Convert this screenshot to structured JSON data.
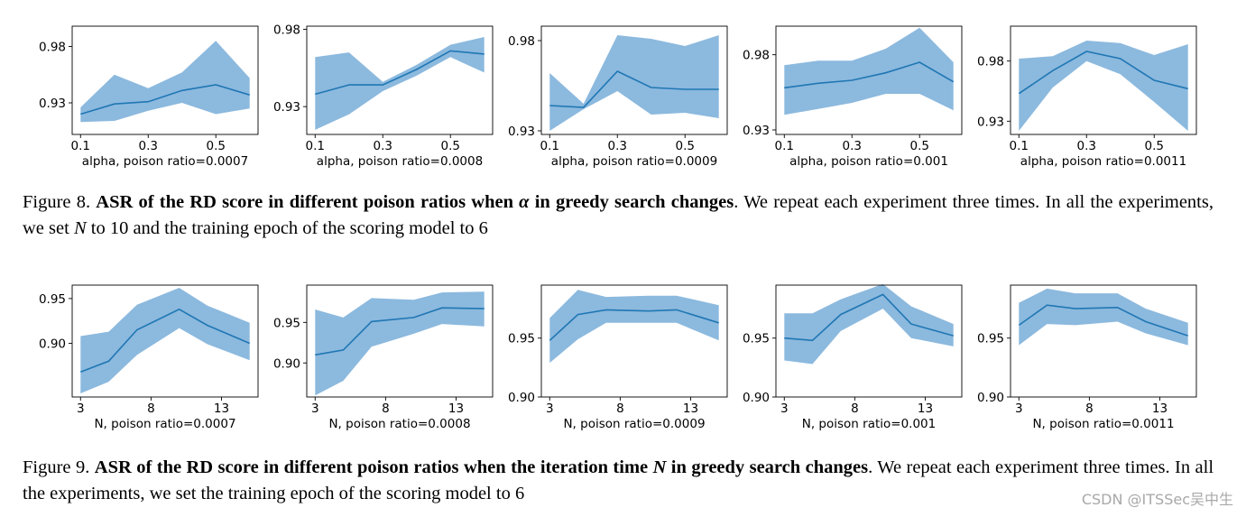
{
  "figure8": {
    "label": "Figure 8.",
    "bold": "ASR of the RD score in different poison ratios when ",
    "symbol": "α",
    "bold2": " in greedy search changes",
    "rest": ". We repeat each experiment three times. In all the experiments, we set ",
    "symbol2": "N",
    "rest2": " to 10 and the training epoch of the scoring model to 6"
  },
  "figure9": {
    "label": "Figure 9.",
    "bold": "ASR of the RD score in different poison ratios when the iteration time ",
    "symbol": "N",
    "bold2": " in greedy search changes",
    "rest": ".  We repeat each experiment three times. In all the experiments, we set the training epoch of the scoring model to 6"
  },
  "watermark": "CSDN @ITSSec吴中生",
  "colors": {
    "line": "#1f77b4",
    "band": "#6fa8d6"
  },
  "chart_data": [
    {
      "type": "line",
      "xlabel": "alpha, poison ratio=0.0007",
      "x": [
        0.1,
        0.2,
        0.3,
        0.4,
        0.5,
        0.6
      ],
      "xticks": [
        "0.1",
        "0.3",
        "0.5"
      ],
      "yticks": [
        "0.93",
        "0.98"
      ],
      "ylim": [
        0.902,
        0.998
      ],
      "series": [
        {
          "mean": [
            0.92,
            0.929,
            0.931,
            0.941,
            0.946,
            0.937
          ],
          "lower": [
            0.913,
            0.914,
            0.923,
            0.93,
            0.92,
            0.925
          ],
          "upper": [
            0.926,
            0.955,
            0.943,
            0.957,
            0.985,
            0.952
          ]
        }
      ]
    },
    {
      "type": "line",
      "xlabel": "alpha, poison ratio=0.0008",
      "x": [
        0.1,
        0.2,
        0.3,
        0.4,
        0.5,
        0.6
      ],
      "xticks": [
        "0.1",
        "0.3",
        "0.5"
      ],
      "yticks": [
        "0.93",
        "0.98"
      ],
      "ylim": [
        0.912,
        0.982
      ],
      "series": [
        {
          "mean": [
            0.938,
            0.944,
            0.944,
            0.954,
            0.966,
            0.964
          ],
          "lower": [
            0.915,
            0.925,
            0.94,
            0.95,
            0.962,
            0.952
          ],
          "upper": [
            0.962,
            0.965,
            0.946,
            0.957,
            0.97,
            0.975
          ]
        }
      ]
    },
    {
      "type": "line",
      "xlabel": "alpha, poison ratio=0.0009",
      "x": [
        0.1,
        0.2,
        0.3,
        0.4,
        0.5,
        0.6
      ],
      "xticks": [
        "0.1",
        "0.3",
        "0.5"
      ],
      "yticks": [
        "0.93",
        "0.98"
      ],
      "ylim": [
        0.928,
        0.988
      ],
      "series": [
        {
          "mean": [
            0.944,
            0.943,
            0.963,
            0.954,
            0.953,
            0.953
          ],
          "lower": [
            0.93,
            0.942,
            0.952,
            0.939,
            0.94,
            0.937
          ],
          "upper": [
            0.962,
            0.945,
            0.983,
            0.981,
            0.977,
            0.983
          ]
        }
      ]
    },
    {
      "type": "line",
      "xlabel": "alpha, poison ratio=0.001",
      "x": [
        0.1,
        0.2,
        0.3,
        0.4,
        0.5,
        0.6
      ],
      "xticks": [
        "0.1",
        "0.3",
        "0.5"
      ],
      "yticks": [
        "0.93",
        "0.98"
      ],
      "ylim": [
        0.927,
        0.999
      ],
      "series": [
        {
          "mean": [
            0.958,
            0.961,
            0.963,
            0.968,
            0.975,
            0.962
          ],
          "lower": [
            0.94,
            0.944,
            0.948,
            0.954,
            0.954,
            0.943
          ],
          "upper": [
            0.973,
            0.976,
            0.976,
            0.984,
            0.998,
            0.975
          ]
        }
      ]
    },
    {
      "type": "line",
      "xlabel": "alpha, poison ratio=0.0011",
      "x": [
        0.1,
        0.2,
        0.3,
        0.4,
        0.5,
        0.6
      ],
      "xticks": [
        "0.1",
        "0.3",
        "0.5"
      ],
      "yticks": [
        "0.93",
        "0.98"
      ],
      "ylim": [
        0.919,
        1.009
      ],
      "series": [
        {
          "mean": [
            0.953,
            0.972,
            0.988,
            0.982,
            0.964,
            0.957
          ],
          "lower": [
            0.922,
            0.958,
            0.98,
            0.969,
            0.946,
            0.922
          ],
          "upper": [
            0.982,
            0.984,
            0.997,
            0.995,
            0.985,
            0.994
          ]
        }
      ]
    },
    {
      "type": "line",
      "xlabel": "N, poison ratio=0.0007",
      "x": [
        3,
        5,
        7,
        10,
        12,
        15
      ],
      "xticks": [
        "3",
        "8",
        "13"
      ],
      "yticks": [
        "0.90",
        "0.95"
      ],
      "ylim": [
        0.84,
        0.965
      ],
      "series": [
        {
          "mean": [
            0.868,
            0.88,
            0.915,
            0.938,
            0.92,
            0.9
          ],
          "lower": [
            0.844,
            0.857,
            0.887,
            0.917,
            0.899,
            0.881
          ],
          "upper": [
            0.908,
            0.913,
            0.943,
            0.962,
            0.942,
            0.923
          ]
        }
      ]
    },
    {
      "type": "line",
      "xlabel": "N, poison ratio=0.0008",
      "x": [
        3,
        5,
        7,
        10,
        12,
        15
      ],
      "xticks": [
        "3",
        "8",
        "13"
      ],
      "yticks": [
        "0.90",
        "0.95"
      ],
      "ylim": [
        0.858,
        0.996
      ],
      "series": [
        {
          "mean": [
            0.91,
            0.916,
            0.951,
            0.956,
            0.968,
            0.967
          ],
          "lower": [
            0.86,
            0.878,
            0.92,
            0.936,
            0.948,
            0.945
          ],
          "upper": [
            0.966,
            0.956,
            0.98,
            0.978,
            0.987,
            0.988
          ]
        }
      ]
    },
    {
      "type": "line",
      "xlabel": "N, poison ratio=0.0009",
      "x": [
        3,
        5,
        7,
        10,
        12,
        15
      ],
      "xticks": [
        "3",
        "8",
        "13"
      ],
      "yticks": [
        "0.90",
        "0.95"
      ],
      "ylim": [
        0.9,
        0.995
      ],
      "series": [
        {
          "mean": [
            0.948,
            0.97,
            0.974,
            0.973,
            0.974,
            0.963
          ],
          "lower": [
            0.929,
            0.949,
            0.963,
            0.963,
            0.963,
            0.948
          ],
          "upper": [
            0.967,
            0.991,
            0.985,
            0.986,
            0.986,
            0.978
          ]
        }
      ]
    },
    {
      "type": "line",
      "xlabel": "N, poison ratio=0.001",
      "x": [
        3,
        5,
        7,
        10,
        12,
        15
      ],
      "xticks": [
        "3",
        "8",
        "13"
      ],
      "yticks": [
        "0.90",
        "0.95"
      ],
      "ylim": [
        0.9,
        0.995
      ],
      "series": [
        {
          "mean": [
            0.95,
            0.948,
            0.97,
            0.987,
            0.962,
            0.952
          ],
          "lower": [
            0.931,
            0.928,
            0.956,
            0.975,
            0.95,
            0.943
          ],
          "upper": [
            0.971,
            0.971,
            0.983,
            0.996,
            0.977,
            0.962
          ]
        }
      ]
    },
    {
      "type": "line",
      "xlabel": "N, poison ratio=0.0011",
      "x": [
        3,
        5,
        7,
        10,
        12,
        15
      ],
      "xticks": [
        "3",
        "8",
        "13"
      ],
      "yticks": [
        "0.90",
        "0.95"
      ],
      "ylim": [
        0.9,
        0.995
      ],
      "series": [
        {
          "mean": [
            0.961,
            0.978,
            0.975,
            0.976,
            0.964,
            0.952
          ],
          "lower": [
            0.944,
            0.962,
            0.961,
            0.964,
            0.954,
            0.944
          ],
          "upper": [
            0.98,
            0.992,
            0.988,
            0.988,
            0.975,
            0.963
          ]
        }
      ]
    }
  ]
}
